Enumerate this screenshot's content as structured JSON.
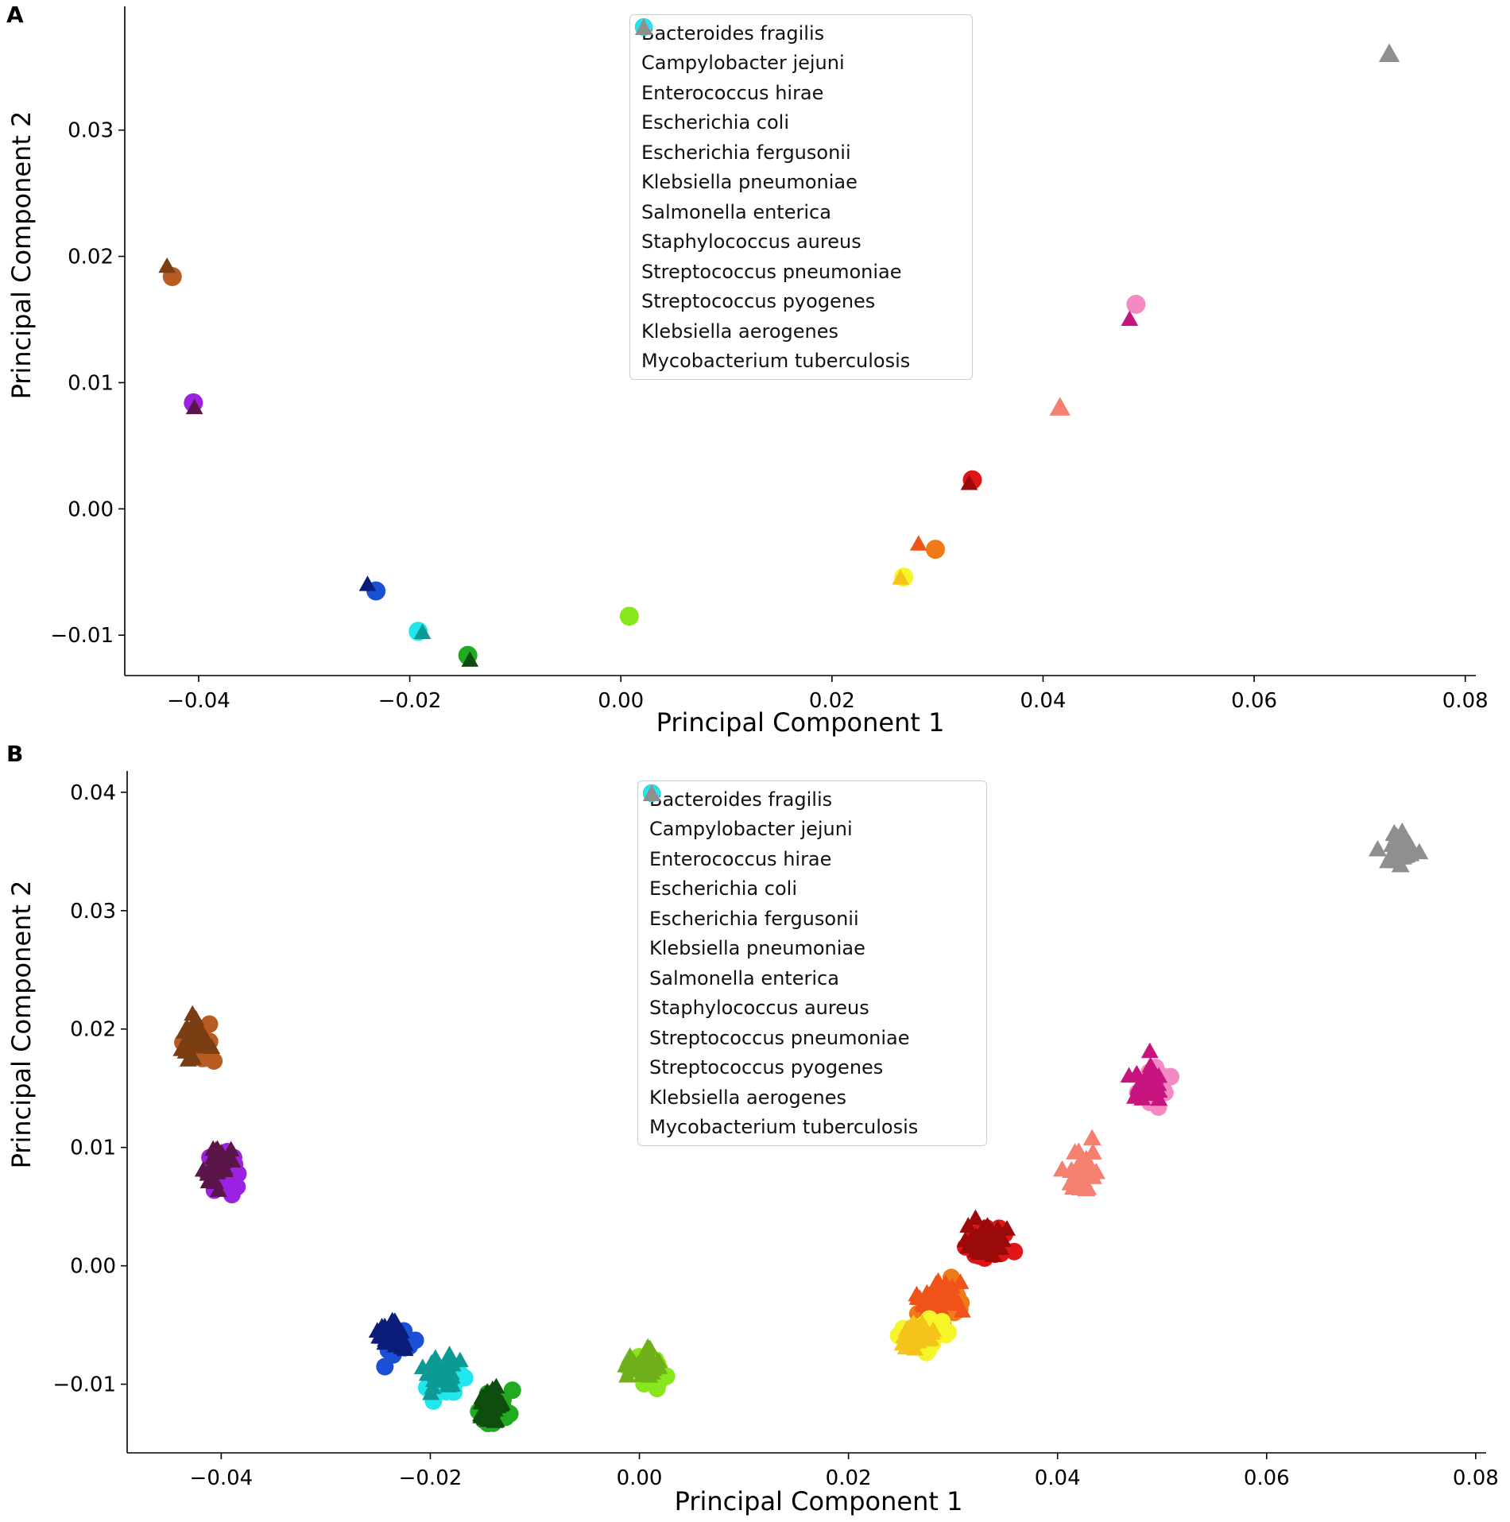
{
  "chart_data": [
    {
      "type": "scatter",
      "panel_label": "A",
      "xlabel": "Principal Component 1",
      "ylabel": "Principal Component 2",
      "xlim": [
        -0.047,
        0.081
      ],
      "ylim": [
        -0.0132,
        0.0398
      ],
      "xticks": [
        -0.04,
        -0.02,
        0.0,
        0.02,
        0.04,
        0.06,
        0.08
      ],
      "xtick_labels": [
        "−0.04",
        "−0.02",
        "0.00",
        "0.02",
        "0.04",
        "0.06",
        "0.08"
      ],
      "yticks": [
        -0.01,
        0.0,
        0.01,
        0.02,
        0.03
      ],
      "ytick_labels": [
        "−0.01",
        "0.00",
        "0.01",
        "0.02",
        "0.03"
      ],
      "legend_position": "top-center",
      "series": [
        {
          "name": "Bacteroides fragilis",
          "marker": "circle",
          "color": "#88e61c",
          "shade_color": "#6fb01a",
          "points": [
            [
              0.0008,
              -0.0085
            ]
          ]
        },
        {
          "name": "Campylobacter jejuni",
          "marker": "circle",
          "color": "#b85c23",
          "shade_color": "#7a3e12",
          "points": [
            [
              -0.0425,
              0.0184
            ],
            [
              -0.043,
              0.0192
            ]
          ]
        },
        {
          "name": "Enterococcus hirae",
          "marker": "circle",
          "color": "#1a4fd6",
          "shade_color": "#0b1d78",
          "points": [
            [
              -0.0232,
              -0.0065
            ],
            [
              -0.024,
              -0.006
            ]
          ]
        },
        {
          "name": "Escherichia coli",
          "marker": "circle",
          "color": "#f07a18",
          "shade_color": "#f0521a",
          "points": [
            [
              0.0298,
              -0.0032
            ],
            [
              0.0282,
              -0.0028
            ]
          ]
        },
        {
          "name": "Escherichia fergusonii",
          "marker": "circle",
          "color": "#f5f52a",
          "shade_color": "#f5c31a",
          "points": [
            [
              0.0268,
              -0.0054
            ],
            [
              0.0265,
              -0.0055
            ]
          ]
        },
        {
          "name": "Klebsiella pneumoniae",
          "marker": "circle",
          "color": "#f48ac4",
          "shade_color": "#c8147e",
          "points": [
            [
              0.0488,
              0.0162
            ],
            [
              0.0482,
              0.015
            ]
          ]
        },
        {
          "name": "Salmonella enterica",
          "marker": "circle",
          "color": "#e01515",
          "shade_color": "#9a0a0a",
          "points": [
            [
              0.0333,
              0.0023
            ],
            [
              0.033,
              0.002
            ]
          ]
        },
        {
          "name": "Staphylococcus aureus",
          "marker": "circle",
          "color": "#9a22e0",
          "shade_color": "#5a1648",
          "points": [
            [
              -0.0405,
              0.0084
            ],
            [
              -0.0404,
              0.008
            ]
          ]
        },
        {
          "name": "Streptococcus pneumoniae",
          "marker": "circle",
          "color": "#22aa22",
          "shade_color": "#0d4d0d",
          "points": [
            [
              -0.0145,
              -0.0116
            ],
            [
              -0.0143,
              -0.012
            ]
          ]
        },
        {
          "name": "Streptococcus pyogenes",
          "marker": "circle",
          "color": "#22e6ee",
          "shade_color": "#0d9a94",
          "points": [
            [
              -0.0192,
              -0.0097
            ],
            [
              -0.0188,
              -0.0098
            ]
          ]
        },
        {
          "name": "Klebsiella aerogenes",
          "marker": "triangle",
          "color": "#f58070",
          "points": [
            [
              0.0416,
              0.008
            ]
          ]
        },
        {
          "name": "Mycobacterium tuberculosis",
          "marker": "triangle",
          "color": "#8f8f8f",
          "points": [
            [
              0.0728,
              0.036
            ]
          ]
        }
      ]
    },
    {
      "type": "scatter",
      "panel_label": "B",
      "xlabel": "Principal Component 1",
      "ylabel": "Principal Component 2",
      "xlim": [
        -0.049,
        0.081
      ],
      "ylim": [
        -0.0158,
        0.0418
      ],
      "xticks": [
        -0.04,
        -0.02,
        0.0,
        0.02,
        0.04,
        0.06,
        0.08
      ],
      "xtick_labels": [
        "−0.04",
        "−0.02",
        "0.00",
        "0.02",
        "0.04",
        "0.06",
        "0.08"
      ],
      "yticks": [
        -0.01,
        0.0,
        0.01,
        0.02,
        0.03,
        0.04
      ],
      "ytick_labels": [
        "−0.01",
        "0.00",
        "0.01",
        "0.02",
        "0.03",
        "0.04"
      ],
      "legend_position": "top-center",
      "series": [
        {
          "name": "Bacteroides fragilis",
          "marker": "circle",
          "color": "#88e61c",
          "shade_color": "#6fb01a",
          "cluster_center": [
            0.0005,
            -0.0085
          ],
          "spread": [
            0.0014,
            0.0011
          ]
        },
        {
          "name": "Campylobacter jejuni",
          "marker": "circle",
          "color": "#b85c23",
          "shade_color": "#7a3e12",
          "cluster_center": [
            -0.0425,
            0.0188
          ],
          "spread": [
            0.0011,
            0.0013
          ]
        },
        {
          "name": "Enterococcus hirae",
          "marker": "circle",
          "color": "#1a4fd6",
          "shade_color": "#0b1d78",
          "cluster_center": [
            -0.0235,
            -0.006
          ],
          "spread": [
            0.0013,
            0.0011
          ]
        },
        {
          "name": "Escherichia coli",
          "marker": "circle",
          "color": "#f07a18",
          "shade_color": "#f0521a",
          "cluster_center": [
            0.029,
            -0.003
          ],
          "spread": [
            0.0017,
            0.0013
          ]
        },
        {
          "name": "Escherichia fergusonii",
          "marker": "circle",
          "color": "#f5f52a",
          "shade_color": "#f5c31a",
          "cluster_center": [
            0.0265,
            -0.0058
          ],
          "spread": [
            0.0016,
            0.001
          ]
        },
        {
          "name": "Klebsiella pneumoniae",
          "marker": "circle",
          "color": "#f48ac4",
          "shade_color": "#c8147e",
          "cluster_center": [
            0.0488,
            0.0155
          ],
          "spread": [
            0.0013,
            0.0014
          ]
        },
        {
          "name": "Salmonella enterica",
          "marker": "circle",
          "color": "#e01515",
          "shade_color": "#9a0a0a",
          "cluster_center": [
            0.0332,
            0.002
          ],
          "spread": [
            0.0016,
            0.0013
          ]
        },
        {
          "name": "Staphylococcus aureus",
          "marker": "circle",
          "color": "#9a22e0",
          "shade_color": "#5a1648",
          "cluster_center": [
            -0.04,
            0.0082
          ],
          "spread": [
            0.0011,
            0.0013
          ]
        },
        {
          "name": "Streptococcus pneumoniae",
          "marker": "circle",
          "color": "#22aa22",
          "shade_color": "#0d4d0d",
          "cluster_center": [
            -0.014,
            -0.012
          ],
          "spread": [
            0.0011,
            0.0012
          ]
        },
        {
          "name": "Streptococcus pyogenes",
          "marker": "circle",
          "color": "#22e6ee",
          "shade_color": "#0d9a94",
          "cluster_center": [
            -0.0188,
            -0.0095
          ],
          "spread": [
            0.0013,
            0.0012
          ]
        },
        {
          "name": "Klebsiella aerogenes",
          "marker": "triangle",
          "color": "#f58070",
          "cluster_center": [
            0.042,
            0.008
          ],
          "spread": [
            0.0011,
            0.0015
          ]
        },
        {
          "name": "Mycobacterium tuberculosis",
          "marker": "triangle",
          "color": "#8f8f8f",
          "cluster_center": [
            0.0728,
            0.0355
          ],
          "spread": [
            0.001,
            0.0014
          ]
        }
      ]
    }
  ]
}
